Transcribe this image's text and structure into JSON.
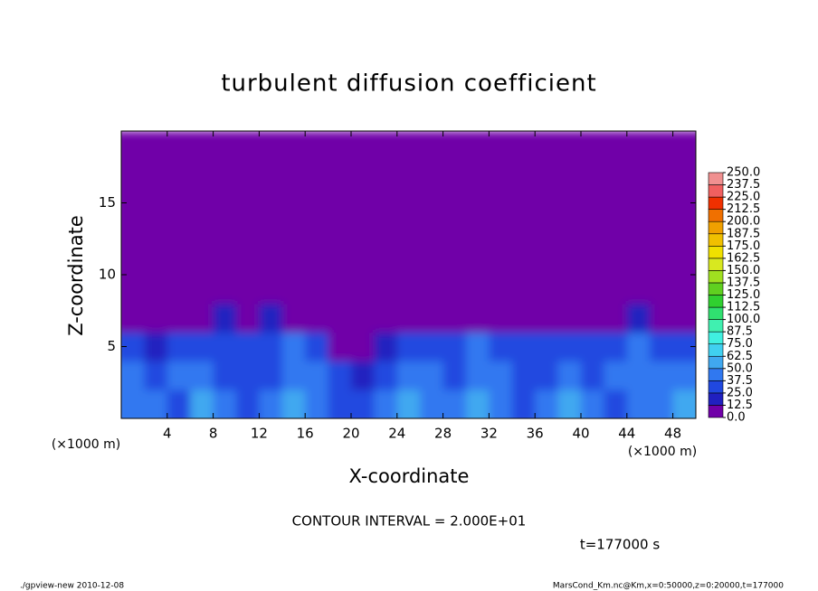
{
  "chart_data": {
    "type": "heatmap",
    "title": "turbulent diffusion coefficient",
    "xlabel": "X-coordinate",
    "ylabel": "Z-coordinate",
    "xunit": "(×1000 m)",
    "yunit": "(×1000 m)",
    "xlim": [
      0,
      50
    ],
    "ylim": [
      0,
      20
    ],
    "xticks": [
      4,
      8,
      12,
      16,
      20,
      24,
      28,
      32,
      36,
      40,
      44,
      48
    ],
    "yticks": [
      5,
      10,
      15
    ],
    "x_edges": [
      0,
      2,
      4,
      6,
      8,
      10,
      12,
      14,
      16,
      18,
      20,
      22,
      24,
      26,
      28,
      30,
      32,
      34,
      36,
      38,
      40,
      42,
      44,
      46,
      48,
      50
    ],
    "z_edges": [
      0,
      2,
      4,
      6,
      8,
      10,
      12,
      14,
      16,
      18,
      20
    ],
    "values": [
      [
        45,
        40,
        35,
        50,
        40,
        35,
        45,
        50,
        40,
        30,
        35,
        45,
        50,
        40,
        45,
        55,
        40,
        35,
        45,
        50,
        40,
        35,
        45,
        40,
        50
      ],
      [
        40,
        35,
        45,
        40,
        35,
        30,
        35,
        40,
        45,
        30,
        20,
        35,
        45,
        40,
        35,
        45,
        40,
        30,
        35,
        40,
        35,
        40,
        45,
        40,
        45
      ],
      [
        25,
        20,
        35,
        30,
        35,
        30,
        35,
        40,
        25,
        10,
        5,
        20,
        35,
        30,
        35,
        40,
        30,
        25,
        30,
        35,
        30,
        35,
        40,
        35,
        30
      ],
      [
        5,
        5,
        5,
        10,
        15,
        10,
        15,
        10,
        5,
        5,
        5,
        5,
        10,
        5,
        5,
        10,
        5,
        5,
        5,
        5,
        5,
        10,
        15,
        10,
        5
      ],
      [
        2,
        2,
        2,
        2,
        2,
        2,
        2,
        2,
        2,
        2,
        2,
        2,
        2,
        2,
        2,
        2,
        2,
        2,
        2,
        2,
        2,
        2,
        2,
        2,
        2
      ],
      [
        0,
        0,
        0,
        0,
        0,
        0,
        0,
        0,
        0,
        0,
        0,
        0,
        0,
        0,
        0,
        0,
        0,
        0,
        0,
        0,
        0,
        0,
        0,
        0,
        0
      ],
      [
        0,
        0,
        0,
        0,
        0,
        0,
        0,
        0,
        0,
        0,
        0,
        0,
        0,
        0,
        0,
        0,
        0,
        0,
        0,
        0,
        0,
        0,
        0,
        0,
        0
      ],
      [
        0,
        0,
        0,
        0,
        0,
        0,
        0,
        0,
        0,
        0,
        0,
        0,
        0,
        0,
        0,
        0,
        0,
        0,
        0,
        0,
        0,
        0,
        0,
        0,
        0
      ],
      [
        0,
        0,
        0,
        0,
        0,
        0,
        0,
        0,
        0,
        0,
        0,
        0,
        0,
        0,
        0,
        0,
        0,
        0,
        0,
        0,
        0,
        0,
        0,
        0,
        0
      ],
      [
        0,
        0,
        0,
        0,
        0,
        0,
        0,
        0,
        0,
        0,
        0,
        0,
        0,
        0,
        0,
        0,
        0,
        0,
        0,
        0,
        0,
        0,
        0,
        0,
        0
      ]
    ],
    "levels": [
      {
        "value": 0,
        "label": "0.0"
      },
      {
        "value": 12.5,
        "label": "12.5"
      },
      {
        "value": 25,
        "label": "25.0"
      },
      {
        "value": 37.5,
        "label": "37.5"
      },
      {
        "value": 50,
        "label": "50.0"
      },
      {
        "value": 62.5,
        "label": "62.5"
      },
      {
        "value": 75,
        "label": "75.0"
      },
      {
        "value": 87.5,
        "label": "87.5"
      },
      {
        "value": 100,
        "label": "100.0"
      },
      {
        "value": 112.5,
        "label": "112.5"
      },
      {
        "value": 125,
        "label": "125.0"
      },
      {
        "value": 137.5,
        "label": "137.5"
      },
      {
        "value": 150,
        "label": "150.0"
      },
      {
        "value": 162.5,
        "label": "162.5"
      },
      {
        "value": 175,
        "label": "175.0"
      },
      {
        "value": 187.5,
        "label": "187.5"
      },
      {
        "value": 200,
        "label": "200.0"
      },
      {
        "value": 212.5,
        "label": "212.5"
      },
      {
        "value": 225,
        "label": "225.0"
      },
      {
        "value": 237.5,
        "label": "237.5"
      },
      {
        "value": 250,
        "label": "250.0"
      }
    ],
    "colors": [
      "#7000a8",
      "#2020c0",
      "#2048e0",
      "#3078f0",
      "#40a8f0",
      "#40d0f0",
      "#40f0e0",
      "#40f0b0",
      "#30e070",
      "#30d030",
      "#60d020",
      "#a0e020",
      "#d8e820",
      "#f0e000",
      "#f0c000",
      "#f0a000",
      "#f07000",
      "#f03000",
      "#f06060",
      "#f09090"
    ],
    "annotation": "CONTOUR INTERVAL = 2.000E+01",
    "time": "t=177000 s",
    "footer_left": "./gpview-new  2010-12-08",
    "footer_right": "MarsCond_Km.nc@Km,x=0:50000,z=0:20000,t=177000"
  }
}
